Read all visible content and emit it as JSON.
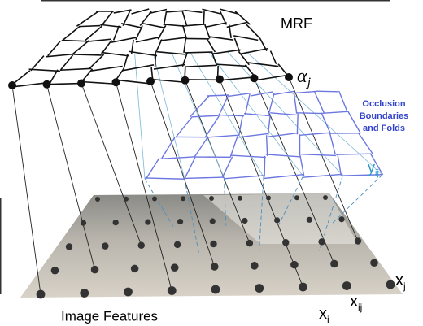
{
  "labels": {
    "mrf": "MRF",
    "alpha": {
      "base": "α",
      "sub": "j"
    },
    "occlusion": [
      "Occlusion",
      "Boundaries",
      "and Folds"
    ],
    "y": {
      "base": "y",
      "sub": "ij"
    },
    "x_j": {
      "base": "x",
      "sub": "j"
    },
    "x_ij": {
      "base": "x",
      "sub": "ij"
    },
    "x_i": {
      "base": "x",
      "sub": "i"
    },
    "image_features": "Image Features"
  }
}
